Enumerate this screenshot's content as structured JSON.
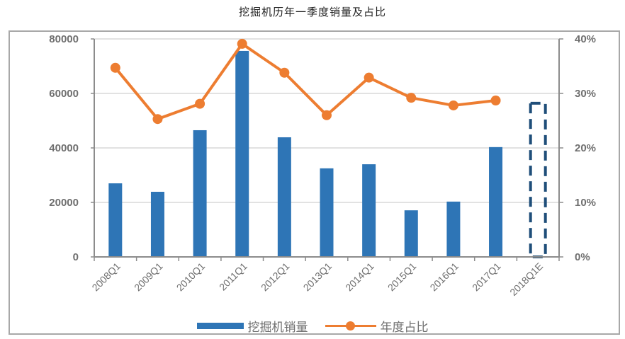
{
  "title": "挖掘机历年一季度销量及占比",
  "legend": {
    "bar_label": "挖掘机销量",
    "line_label": "年度占比"
  },
  "colors": {
    "bar": "#2e75b6",
    "line": "#ed7d31",
    "estimate_border": "#1f4e79",
    "grid": "#d9d9d9",
    "axis": "#8c8c8c"
  },
  "chart_data": {
    "type": "bar+line",
    "title": "挖掘机历年一季度销量及占比",
    "categories": [
      "2008Q1",
      "2009Q1",
      "2010Q1",
      "2011Q1",
      "2012Q1",
      "2013Q1",
      "2014Q1",
      "2015Q1",
      "2016Q1",
      "2017Q1",
      "2018Q1E"
    ],
    "series": [
      {
        "name": "挖掘机销量",
        "type": "bar",
        "axis": "left",
        "values": [
          27000,
          23900,
          46500,
          75600,
          43900,
          32500,
          34000,
          17100,
          20300,
          40300,
          56400
        ],
        "note": "2018Q1E is an estimate drawn as a dashed outline bar"
      },
      {
        "name": "年度占比",
        "type": "line",
        "axis": "right",
        "values": [
          0.347,
          0.253,
          0.281,
          0.391,
          0.338,
          0.26,
          0.329,
          0.292,
          0.278,
          0.287,
          null
        ]
      }
    ],
    "left_axis": {
      "ylim": [
        0,
        80000
      ],
      "ticks": [
        "0",
        "20000",
        "40000",
        "60000",
        "80000"
      ]
    },
    "right_axis": {
      "ylim": [
        0,
        0.4
      ],
      "ticks": [
        "0%",
        "10%",
        "20%",
        "30%",
        "40%"
      ]
    },
    "grid": true,
    "legend_position": "bottom",
    "xlabel": "",
    "ylabel": ""
  }
}
